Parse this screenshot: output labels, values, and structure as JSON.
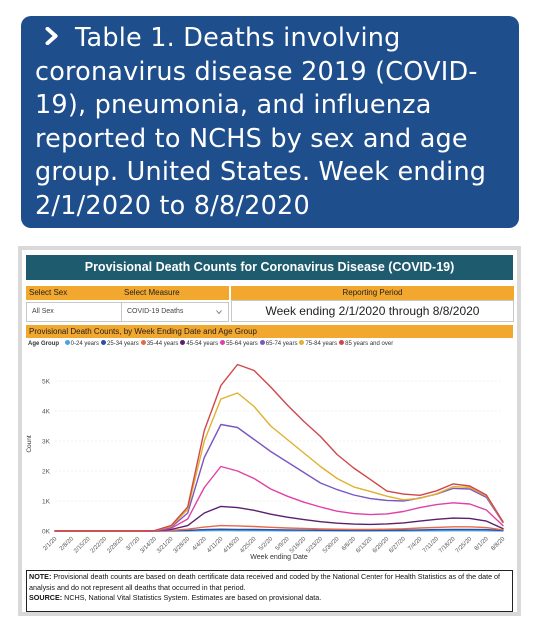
{
  "header": {
    "title": "Table 1. Deaths involving coronavirus disease 2019 (COVID-19), pneumonia, and influenza reported to NCHS by sex and age group. United States. Week ending 2/1/2020 to 8/8/2020"
  },
  "report": {
    "title": "Provisional Death Counts for Coronavirus Disease (COVID-19)",
    "select_sex_label": "Select Sex",
    "select_sex_value": "All Sex",
    "select_measure_label": "Select Measure",
    "select_measure_value": "COVID-19 Deaths",
    "reporting_period_label": "Reporting Period",
    "reporting_period_value": "Week ending 2/1/2020 through 8/8/2020",
    "chart_title": "Provisional Death Counts, by Week Ending Date and Age Group",
    "legend_title": "Age Group",
    "note_label": "NOTE:",
    "note_text": " Provisional death counts are based on death certificate data received and coded by the National Center for Health Statistics as of the date of analysis and do not represent all deaths that occurred in that period.",
    "source_label": "SOURCE:",
    "source_text": " NCHS, National Vital Statistics System. Estimates are based on provisional data."
  },
  "colors": {
    "header_bg": "#1f4e8c",
    "banner_bg": "#1f5b6e",
    "accent": "#f2a72e"
  },
  "chart_data": {
    "type": "line",
    "xlabel": "Week ending Date",
    "ylabel": "Count",
    "ylim": [
      0,
      5800
    ],
    "yticks": [
      0,
      1000,
      2000,
      3000,
      4000,
      5000
    ],
    "ytick_labels": [
      "0K",
      "1K",
      "2K",
      "3K",
      "4K",
      "5K"
    ],
    "grid": true,
    "legend_position": "top",
    "x": [
      "2/1/20",
      "2/8/20",
      "2/15/20",
      "2/22/20",
      "2/29/20",
      "3/7/20",
      "3/14/20",
      "3/21/20",
      "3/28/20",
      "4/4/20",
      "4/11/20",
      "4/18/20",
      "4/25/20",
      "5/2/20",
      "5/9/20",
      "5/16/20",
      "5/23/20",
      "5/30/20",
      "6/6/20",
      "6/13/20",
      "6/20/20",
      "6/27/20",
      "7/4/20",
      "7/11/20",
      "7/18/20",
      "7/25/20",
      "8/1/20",
      "8/8/20"
    ],
    "series": [
      {
        "name": "0-24 years",
        "color": "#4aa3df",
        "values": [
          0,
          0,
          0,
          0,
          0,
          0,
          0,
          2,
          5,
          10,
          12,
          11,
          10,
          9,
          8,
          7,
          6,
          5,
          5,
          4,
          4,
          5,
          6,
          8,
          9,
          9,
          7,
          2
        ]
      },
      {
        "name": "25-34 years",
        "color": "#2c4fa3",
        "values": [
          0,
          0,
          0,
          0,
          0,
          0,
          0,
          8,
          20,
          45,
          60,
          55,
          50,
          42,
          35,
          30,
          25,
          22,
          20,
          20,
          22,
          28,
          38,
          48,
          55,
          55,
          45,
          15
        ]
      },
      {
        "name": "35-44 years",
        "color": "#e8694a",
        "values": [
          0,
          0,
          0,
          0,
          0,
          0,
          1,
          20,
          60,
          130,
          180,
          170,
          150,
          125,
          100,
          85,
          70,
          60,
          55,
          55,
          60,
          75,
          100,
          120,
          140,
          140,
          115,
          35
        ]
      },
      {
        "name": "45-54 years",
        "color": "#5b1f6e",
        "values": [
          0,
          0,
          0,
          0,
          0,
          0,
          2,
          50,
          180,
          600,
          820,
          780,
          690,
          560,
          460,
          380,
          310,
          260,
          230,
          220,
          235,
          270,
          330,
          390,
          430,
          420,
          330,
          80
        ]
      },
      {
        "name": "55-64 years",
        "color": "#e040a8",
        "values": [
          0,
          0,
          0,
          0,
          0,
          0,
          5,
          90,
          400,
          1450,
          2150,
          2000,
          1750,
          1400,
          1160,
          960,
          800,
          660,
          580,
          545,
          570,
          650,
          780,
          880,
          940,
          900,
          700,
          180
        ]
      },
      {
        "name": "65-74 years",
        "color": "#7a57c2",
        "values": [
          0,
          0,
          0,
          0,
          0,
          0,
          8,
          120,
          600,
          2450,
          3550,
          3450,
          3050,
          2650,
          2300,
          1950,
          1600,
          1380,
          1200,
          1080,
          1020,
          1000,
          1100,
          1230,
          1420,
          1400,
          1120,
          280
        ]
      },
      {
        "name": "75-84 years",
        "color": "#e0b12f",
        "values": [
          0,
          0,
          0,
          0,
          0,
          0,
          10,
          150,
          720,
          3000,
          4400,
          4600,
          4150,
          3500,
          3050,
          2600,
          2150,
          1750,
          1470,
          1320,
          1160,
          1040,
          1090,
          1240,
          1480,
          1450,
          1170,
          300
        ]
      },
      {
        "name": "85 years and over",
        "color": "#d0474a",
        "values": [
          0,
          0,
          0,
          0,
          0,
          0,
          12,
          180,
          800,
          3350,
          4850,
          5550,
          5350,
          4800,
          4200,
          3650,
          3150,
          2550,
          2100,
          1720,
          1330,
          1230,
          1190,
          1340,
          1570,
          1500,
          1200,
          310
        ]
      }
    ]
  }
}
